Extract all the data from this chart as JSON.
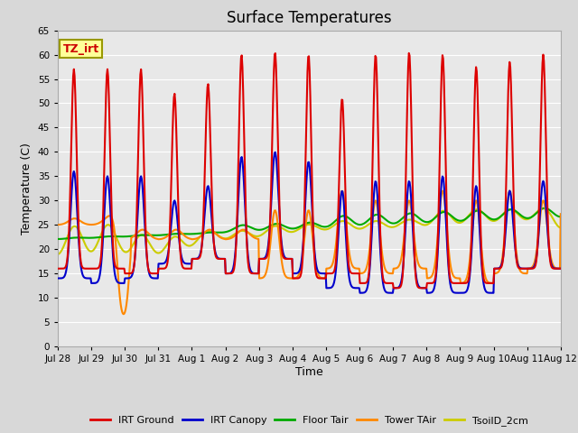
{
  "title": "Surface Temperatures",
  "xlabel": "Time",
  "ylabel": "Temperature (C)",
  "ylim": [
    0,
    65
  ],
  "yticks": [
    0,
    5,
    10,
    15,
    20,
    25,
    30,
    35,
    40,
    45,
    50,
    55,
    60,
    65
  ],
  "x_tick_labels": [
    "Jul 28",
    "Jul 29",
    "Jul 30",
    "Jul 31",
    "Aug 1",
    "Aug 2",
    "Aug 3",
    "Aug 4",
    "Aug 5",
    "Aug 6",
    "Aug 7",
    "Aug 8",
    "Aug 9",
    "Aug 10",
    "Aug 11",
    "Aug 12"
  ],
  "annotation_text": "TZ_irt",
  "annotation_color": "#cc0000",
  "annotation_bg": "#ffff99",
  "annotation_border": "#999900",
  "series": {
    "IRT Ground": {
      "color": "#dd0000",
      "linewidth": 1.5
    },
    "IRT Canopy": {
      "color": "#0000cc",
      "linewidth": 1.5
    },
    "Floor Tair": {
      "color": "#00aa00",
      "linewidth": 1.5
    },
    "Tower TAir": {
      "color": "#ff8800",
      "linewidth": 1.5
    },
    "TsoilD_2cm": {
      "color": "#cccc00",
      "linewidth": 1.5
    }
  },
  "fig_bg": "#d8d8d8",
  "plot_bg": "#e8e8e8",
  "grid_color": "#ffffff",
  "tick_label_fontsize": 7.5,
  "title_fontsize": 12
}
